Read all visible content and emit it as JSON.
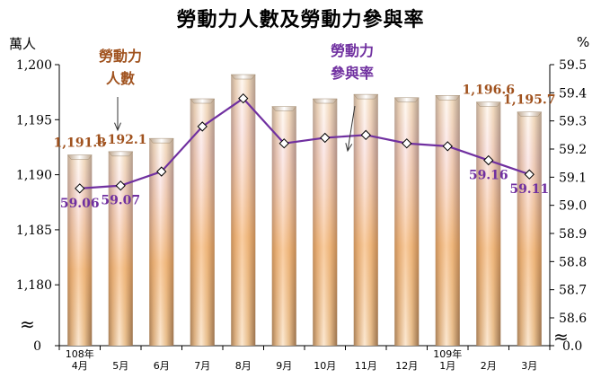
{
  "chart_data": {
    "type": "bar+line",
    "title": "勞動力人數及勞動力參與率",
    "left_unit": "萬人",
    "right_unit": "%",
    "categories": [
      "4月",
      "5月",
      "6月",
      "7月",
      "8月",
      "9月",
      "10月",
      "11月",
      "12月",
      "1月",
      "2月",
      "3月"
    ],
    "year_markers": [
      {
        "label": "108年",
        "category_index": 0
      },
      {
        "label": "109年",
        "category_index": 9
      }
    ],
    "series": [
      {
        "name": "勞動力人數",
        "type": "bar",
        "axis": "left",
        "values": [
          1191.8,
          1192.1,
          1193.3,
          1196.9,
          1199.1,
          1196.2,
          1196.9,
          1197.3,
          1197.0,
          1197.2,
          1196.6,
          1195.7
        ]
      },
      {
        "name": "勞動力參與率",
        "type": "line",
        "axis": "right",
        "values": [
          59.06,
          59.07,
          59.12,
          59.28,
          59.38,
          59.22,
          59.24,
          59.25,
          59.22,
          59.21,
          59.16,
          59.11
        ]
      }
    ],
    "bar_labels": [
      {
        "index": 0,
        "text": "1,191.8"
      },
      {
        "index": 1,
        "text": "1,192.1"
      },
      {
        "index": 10,
        "text": "1,196.6"
      },
      {
        "index": 11,
        "text": "1,195.7"
      }
    ],
    "line_labels": [
      {
        "index": 0,
        "text": "59.06"
      },
      {
        "index": 1,
        "text": "59.07"
      },
      {
        "index": 10,
        "text": "59.16"
      },
      {
        "index": 11,
        "text": "59.11"
      }
    ],
    "legend_labels": [
      {
        "series": "勞動力人數",
        "lines": [
          "勞動力",
          "人數"
        ]
      },
      {
        "series": "勞動力參與率",
        "lines": [
          "勞動力",
          "參與率"
        ]
      }
    ],
    "left_axis": {
      "ticks": [
        1180,
        1185,
        1190,
        1195,
        1200
      ],
      "tick_labels": [
        "1,180",
        "1,185",
        "1,190",
        "1,195",
        "1,200"
      ],
      "break_label": "0",
      "ylim": [
        1177,
        1200
      ]
    },
    "right_axis": {
      "ticks": [
        58.6,
        58.7,
        58.8,
        58.9,
        59.0,
        59.1,
        59.2,
        59.3,
        59.4,
        59.5
      ],
      "tick_labels": [
        "58.6",
        "58.7",
        "58.8",
        "58.9",
        "59.0",
        "59.1",
        "59.2",
        "59.3",
        "59.4",
        "59.5"
      ],
      "break_label": "0.0",
      "ylim": [
        58.6,
        59.5
      ]
    },
    "colors": {
      "bar_label": "#a0521e",
      "line": "#7030a0",
      "line_label": "#7030a0"
    }
  }
}
